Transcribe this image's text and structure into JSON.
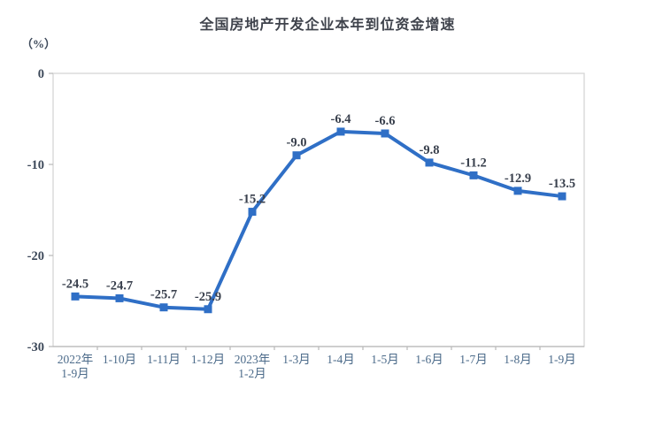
{
  "chart_data": {
    "type": "line",
    "title": "全国房地产开发企业本年到位资金增速",
    "unit_label": "（%）",
    "categories": [
      "2022年\n1-9月",
      "1-10月",
      "1-11月",
      "1-12月",
      "2023年\n1-2月",
      "1-3月",
      "1-4月",
      "1-5月",
      "1-6月",
      "1-7月",
      "1-8月",
      "1-9月"
    ],
    "values": [
      -24.5,
      -24.7,
      -25.7,
      -25.9,
      -15.2,
      -9.0,
      -6.4,
      -6.6,
      -9.8,
      -11.2,
      -12.9,
      -13.5
    ],
    "value_labels": [
      "-24.5",
      "-24.7",
      "-25.7",
      "-25.9",
      "-15.2",
      "-9.0",
      "-6.4",
      "-6.6",
      "-9.8",
      "-11.2",
      "-12.9",
      "-13.5"
    ],
    "xlabel": "",
    "ylabel": "（%）",
    "ylim": [
      -30,
      0
    ],
    "y_ticks": [
      0,
      -10,
      -20,
      -30
    ],
    "y_tick_labels": [
      "0",
      "-10",
      "-20",
      "-30"
    ],
    "grid": false,
    "legend_position": "none",
    "marker": "square",
    "colors": {
      "line": "#2f6fc6",
      "marker": "#2f6fc6",
      "plot_border": "#d6d6d6",
      "axis_line": "#b8b8b8",
      "y_tick_text": "#3c4859",
      "x_tick_text": "#4c6b8a",
      "data_label_text": "#39404d",
      "title_text": "#3f434c",
      "background": "#ffffff"
    }
  }
}
